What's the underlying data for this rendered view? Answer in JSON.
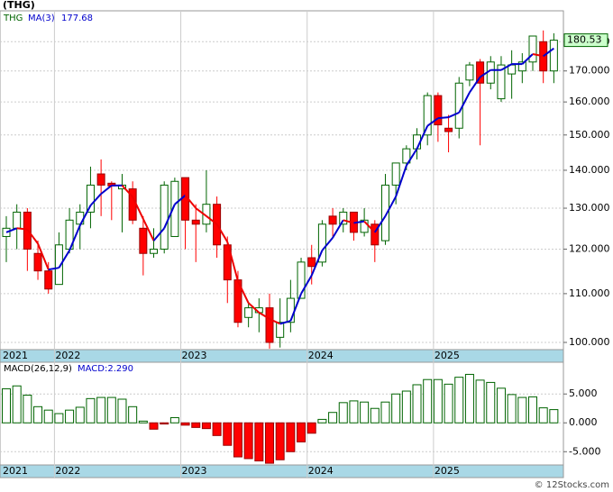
{
  "chart_data": [
    {
      "type": "candlestick",
      "title": "(THG)",
      "log": true,
      "grid": true,
      "categories": [
        "2021",
        null,
        null,
        null,
        null,
        "2022",
        null,
        null,
        null,
        null,
        null,
        null,
        null,
        null,
        null,
        null,
        null,
        "2023",
        null,
        null,
        null,
        null,
        null,
        null,
        null,
        null,
        null,
        null,
        null,
        "2024",
        null,
        null,
        null,
        null,
        null,
        null,
        null,
        null,
        null,
        null,
        null,
        "2025",
        null,
        null,
        null,
        null,
        null,
        null,
        null,
        null,
        null,
        null,
        null
      ],
      "series": [
        {
          "name": "THG",
          "color": "#006400",
          "down_color": "#ff0000",
          "open": [
            123,
            125,
            129,
            119,
            115,
            112,
            120,
            126,
            129,
            139,
            136.5,
            135,
            135,
            125,
            119,
            120,
            123,
            138,
            127,
            126,
            131,
            121,
            113,
            105,
            106,
            107,
            101,
            104,
            109,
            118,
            117,
            128,
            126,
            129,
            124,
            126,
            122,
            136,
            142,
            146,
            150,
            162,
            152,
            152,
            167,
            173,
            166,
            161,
            169,
            170,
            173,
            180,
            170
          ],
          "high": [
            128,
            131,
            130,
            122,
            117,
            124,
            130,
            131,
            141,
            143,
            137,
            139,
            137,
            128,
            125,
            137,
            138,
            138,
            131,
            140,
            133,
            123,
            115,
            108,
            109,
            110,
            109,
            113,
            118,
            121,
            127,
            130,
            130,
            129,
            130,
            127,
            139,
            142,
            147,
            152,
            163,
            163,
            156,
            168,
            173,
            174,
            175,
            175,
            177,
            176,
            182,
            184,
            183
          ],
          "low": [
            117,
            120,
            115,
            113,
            110,
            112,
            119,
            120,
            125,
            128,
            127,
            124,
            126,
            114,
            118,
            119,
            123,
            120,
            117,
            124,
            118,
            108,
            103,
            103,
            102,
            98.8,
            99,
            102,
            109,
            112,
            116,
            123,
            124,
            122,
            123,
            117,
            121,
            131,
            140,
            143,
            147,
            148,
            145,
            149,
            165,
            147,
            164,
            160,
            161,
            166,
            170,
            166,
            166
          ],
          "close": [
            125,
            129,
            120,
            115,
            111,
            121,
            127,
            129,
            136,
            136,
            135.8,
            136,
            127,
            119,
            120,
            136,
            137,
            127,
            126,
            131,
            121,
            113,
            104,
            107,
            107,
            100,
            104,
            109,
            117,
            116,
            126,
            126,
            129,
            124,
            127,
            121,
            136,
            142,
            146,
            150,
            162,
            153,
            151,
            166,
            172,
            166,
            173,
            172,
            172,
            173,
            182,
            170,
            180.53
          ]
        }
      ],
      "ma": {
        "name": "MA(3)",
        "color": "#0000cc",
        "down_color": "#ee0000",
        "values": [
          124,
          125,
          124.7,
          121.3,
          115.3,
          115.7,
          119.7,
          125.7,
          130.7,
          133.7,
          135.9,
          135.9,
          132.9,
          127.3,
          122,
          125,
          131,
          133.3,
          130,
          128,
          126,
          121.7,
          112.7,
          108,
          106,
          104.7,
          103.7,
          104.3,
          110,
          114,
          119.7,
          122.7,
          127,
          126.3,
          126.7,
          124,
          128,
          133,
          141.3,
          146,
          152.7,
          155,
          155.3,
          156.7,
          163,
          168,
          170.3,
          170.3,
          172.3,
          172.3,
          175.7,
          175,
          177.68
        ]
      },
      "ylim": [
        98.6,
        191.2
      ],
      "yticks": [
        {
          "value": 100,
          "label": "100.000"
        },
        {
          "value": 110,
          "label": "110.000"
        },
        {
          "value": 120,
          "label": "120.000"
        },
        {
          "value": 130,
          "label": "130.000"
        },
        {
          "value": 140,
          "label": "140.000"
        },
        {
          "value": 150,
          "label": "150.000"
        },
        {
          "value": 160,
          "label": "160.000"
        },
        {
          "value": 170,
          "label": "170.000"
        },
        {
          "value": 180,
          "label": "180.000"
        }
      ]
    },
    {
      "type": "bar",
      "grid": true,
      "series": [
        {
          "name": "MACD(26,12,9)",
          "color": "#006400",
          "down_color": "#ff0000",
          "values": [
            5.9,
            6.4,
            4.8,
            2.8,
            2.2,
            1.6,
            2.2,
            2.7,
            4.2,
            4.4,
            4.4,
            4.1,
            2.8,
            0.3,
            -1.1,
            -0.2,
            0.9,
            -0.4,
            -0.8,
            -1.0,
            -2.2,
            -3.9,
            -5.9,
            -6.2,
            -6.6,
            -7.0,
            -6.4,
            -5.0,
            -3.3,
            -1.8,
            0.6,
            1.8,
            3.5,
            3.8,
            3.6,
            2.5,
            3.6,
            5.0,
            5.5,
            6.6,
            7.5,
            7.5,
            6.7,
            7.9,
            8.4,
            7.4,
            7.0,
            6.0,
            4.9,
            4.4,
            4.5,
            2.6,
            2.29
          ],
          "last": {
            "value": 2.29,
            "label": "MACD:2.290"
          }
        }
      ],
      "ylim": [
        -7.3,
        10.5
      ],
      "yticks": [
        {
          "value": 5,
          "label": "5.000"
        },
        {
          "value": 0,
          "label": "0.000"
        },
        {
          "value": -5,
          "label": "-5.000"
        }
      ]
    }
  ],
  "source": "© 12Stocks.com"
}
